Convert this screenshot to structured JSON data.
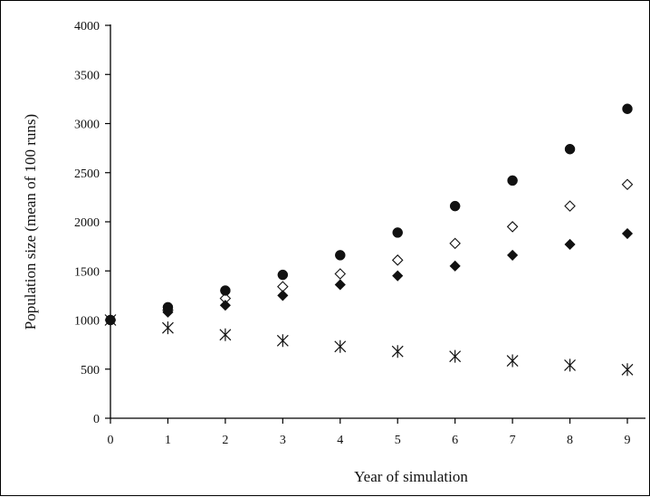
{
  "chart_data": {
    "type": "scatter",
    "title": "",
    "xlabel": "Year of simulation",
    "ylabel": "Population size (mean of 100 runs)",
    "xlim": [
      0,
      9
    ],
    "ylim": [
      0,
      4000
    ],
    "x_ticks": [
      "0",
      "1",
      "2",
      "3",
      "4",
      "5",
      "6",
      "7",
      "8",
      "9"
    ],
    "y_ticks": [
      "0",
      "500",
      "1000",
      "1500",
      "2000",
      "2500",
      "3000",
      "3500",
      "4000"
    ],
    "grid": false,
    "legend": "none",
    "series": [
      {
        "marker": "filled-circle",
        "color": "#111111",
        "x": [
          0,
          1,
          2,
          3,
          4,
          5,
          6,
          7,
          8,
          9
        ],
        "values": [
          1000,
          1130,
          1300,
          1460,
          1660,
          1890,
          2160,
          2420,
          2740,
          3150
        ]
      },
      {
        "marker": "open-diamond",
        "color": "#111111",
        "x": [
          0,
          1,
          2,
          3,
          4,
          5,
          6,
          7,
          8,
          9
        ],
        "values": [
          1000,
          1100,
          1220,
          1340,
          1470,
          1610,
          1780,
          1950,
          2160,
          2380
        ]
      },
      {
        "marker": "filled-diamond",
        "color": "#111111",
        "x": [
          0,
          1,
          2,
          3,
          4,
          5,
          6,
          7,
          8,
          9
        ],
        "values": [
          1000,
          1080,
          1150,
          1250,
          1360,
          1450,
          1550,
          1660,
          1770,
          1880
        ]
      },
      {
        "marker": "asterisk",
        "color": "#111111",
        "x": [
          0,
          1,
          2,
          3,
          4,
          5,
          6,
          7,
          8,
          9
        ],
        "values": [
          1000,
          920,
          850,
          790,
          730,
          680,
          630,
          585,
          540,
          495
        ]
      }
    ]
  }
}
